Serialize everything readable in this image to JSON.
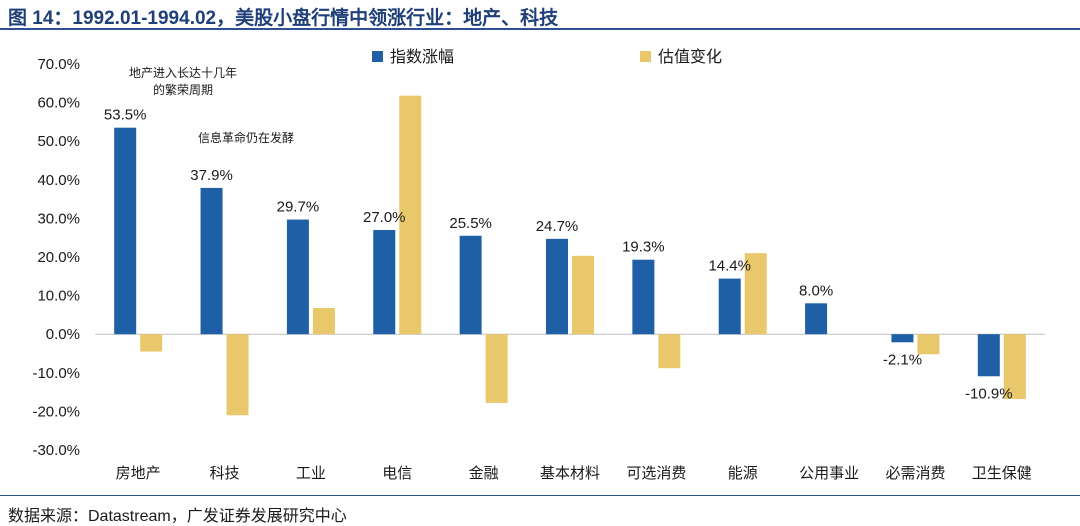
{
  "title": "图 14：1992.01-1994.02，美股小盘行情中领涨行业：地产、科技",
  "source": "数据来源：Datastream，广发证券发展研究中心",
  "colors": {
    "accent": "#1f3f7a",
    "series_blue": "#1f5fa6",
    "series_gold": "#e9c86c"
  },
  "chart_data": {
    "type": "bar",
    "categories": [
      "房地产",
      "科技",
      "工业",
      "电信",
      "金融",
      "基本材料",
      "可选消费",
      "能源",
      "公用事业",
      "必需消费",
      "卫生保健"
    ],
    "series": [
      {
        "name": "指数涨幅",
        "values": [
          53.5,
          37.9,
          29.7,
          27.0,
          25.5,
          24.7,
          19.3,
          14.4,
          8.0,
          -2.1,
          -10.9
        ]
      },
      {
        "name": "估值变化",
        "values": [
          -4.5,
          -21.0,
          6.8,
          61.8,
          -17.8,
          20.3,
          -8.8,
          21.0,
          null,
          -5.2,
          -16.8
        ]
      }
    ],
    "data_labels": [
      "53.5%",
      "37.9%",
      "29.7%",
      "27.0%",
      "25.5%",
      "24.7%",
      "19.3%",
      "14.4%",
      "8.0%",
      "-2.1%",
      "-10.9%"
    ],
    "y_ticks": [
      "70.0%",
      "60.0%",
      "50.0%",
      "40.0%",
      "30.0%",
      "20.0%",
      "10.0%",
      "0.0%",
      "-10.0%",
      "-20.0%",
      "-30.0%"
    ],
    "ylim": [
      -30,
      70
    ],
    "legend_position": "top",
    "annotations": [
      {
        "lines": [
          "地产进入长达十几年",
          "的繁荣周期"
        ]
      },
      {
        "lines": [
          "信息革命仍在发酵"
        ]
      }
    ]
  }
}
